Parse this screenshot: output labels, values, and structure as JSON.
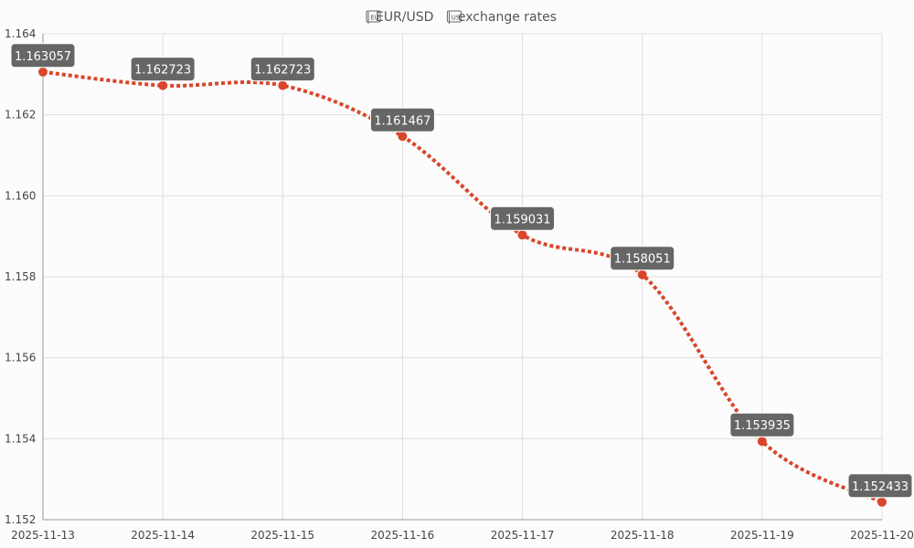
{
  "chart_data": {
    "type": "line",
    "title": "EUR/USD exchange rates",
    "title_icons": [
      "eu-flag-icon",
      "us-flag-icon"
    ],
    "xlabel": "",
    "ylabel": "",
    "categories": [
      "2025-11-13",
      "2025-11-14",
      "2025-11-15",
      "2025-11-16",
      "2025-11-17",
      "2025-11-18",
      "2025-11-19",
      "2025-11-20"
    ],
    "series": [
      {
        "values": [
          1.163057,
          1.162723,
          1.162723,
          1.161467,
          1.159031,
          1.158051,
          1.153935,
          1.152433
        ],
        "data_labels": [
          "1.163057",
          "1.162723",
          "1.162723",
          "1.161467",
          "1.159031",
          "1.158051",
          "1.153935",
          "1.152433"
        ]
      }
    ],
    "ylim": [
      1.152,
      1.164
    ],
    "yticks": [
      "1.152",
      "1.154",
      "1.156",
      "1.158",
      "1.160",
      "1.162",
      "1.164"
    ],
    "grid": true,
    "line_style": "dotted",
    "smooth": true,
    "colors": {
      "line": "#d9462b",
      "marker": "#d9462b",
      "label_bg": "#666666",
      "label_text": "#ffffff",
      "grid": "#dedede",
      "background": "#fcfcfc"
    }
  }
}
